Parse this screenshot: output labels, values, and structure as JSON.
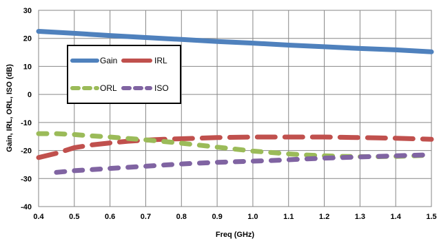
{
  "chart_data": {
    "type": "line",
    "xlabel": "Freq (GHz)",
    "ylabel": "Gain, IRL, ORL, ISO (dB)",
    "xlim": [
      0.4,
      1.5
    ],
    "ylim": [
      -40,
      30
    ],
    "x_ticks": [
      "0.4",
      "0.5",
      "0.6",
      "0.7",
      "0.8",
      "0.9",
      "1.0",
      "1.1",
      "1.2",
      "1.3",
      "1.4",
      "1.5"
    ],
    "y_ticks": [
      "30",
      "20",
      "10",
      "0",
      "-10",
      "-20",
      "-30",
      "-40"
    ],
    "grid": true,
    "legend_position": "left-middle",
    "series": [
      {
        "name": "Gain",
        "color": "#4f81bd",
        "style": "solid",
        "x": [
          0.4,
          0.5,
          0.6,
          0.7,
          0.8,
          0.9,
          1.0,
          1.1,
          1.2,
          1.3,
          1.4,
          1.5
        ],
        "y": [
          22.5,
          21.8,
          21.0,
          20.3,
          19.6,
          18.9,
          18.3,
          17.6,
          17.0,
          16.4,
          15.9,
          15.2
        ]
      },
      {
        "name": "IRL",
        "color": "#c0504d",
        "style": "dash",
        "x": [
          0.4,
          0.45,
          0.5,
          0.55,
          0.6,
          0.65,
          0.7,
          0.75,
          0.8,
          0.85,
          0.9,
          0.95,
          1.0,
          1.05,
          1.1,
          1.15,
          1.2,
          1.25,
          1.3,
          1.35,
          1.4,
          1.45,
          1.5
        ],
        "y": [
          -22.5,
          -21.0,
          -19.0,
          -18.0,
          -17.3,
          -16.7,
          -16.3,
          -16.0,
          -15.8,
          -15.6,
          -15.4,
          -15.3,
          -15.2,
          -15.2,
          -15.2,
          -15.2,
          -15.2,
          -15.3,
          -15.4,
          -15.5,
          -15.6,
          -15.8,
          -16.0
        ]
      },
      {
        "name": "ORL",
        "color": "#9bbb59",
        "style": "dash",
        "x": [
          0.4,
          0.45,
          0.5,
          0.55,
          0.6,
          0.65,
          0.7,
          0.75,
          0.8,
          0.85,
          0.9,
          0.95,
          1.0,
          1.05,
          1.1,
          1.15,
          1.2,
          1.25,
          1.3,
          1.35,
          1.4,
          1.45,
          1.5
        ],
        "y": [
          -14.0,
          -14.0,
          -14.3,
          -14.8,
          -15.2,
          -15.7,
          -16.2,
          -16.8,
          -17.4,
          -18.1,
          -18.8,
          -19.5,
          -20.2,
          -20.7,
          -21.2,
          -21.6,
          -21.9,
          -22.1,
          -22.2,
          -22.2,
          -22.1,
          -21.9,
          -21.6
        ]
      },
      {
        "name": "ISO",
        "color": "#8064a2",
        "style": "dash",
        "x": [
          0.45,
          0.5,
          0.55,
          0.6,
          0.65,
          0.7,
          0.75,
          0.8,
          0.85,
          0.9,
          0.95,
          1.0,
          1.05,
          1.1,
          1.15,
          1.2,
          1.25,
          1.3,
          1.35,
          1.4,
          1.45,
          1.5
        ],
        "y": [
          -27.8,
          -27.2,
          -26.8,
          -26.4,
          -26.0,
          -25.6,
          -25.2,
          -24.8,
          -24.5,
          -24.2,
          -24.0,
          -23.8,
          -23.6,
          -23.3,
          -23.0,
          -22.7,
          -22.5,
          -22.3,
          -22.1,
          -21.9,
          -21.7,
          -21.5
        ]
      }
    ]
  }
}
